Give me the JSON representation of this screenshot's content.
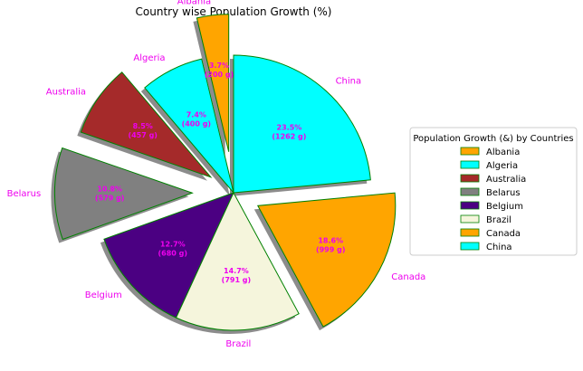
{
  "chart_data": {
    "type": "pie",
    "title": "Country wise Population Growth (%)",
    "categories": [
      "Albania",
      "Algeria",
      "Australia",
      "Belarus",
      "Belgium",
      "Brazil",
      "Canada",
      "China"
    ],
    "values": [
      200,
      400,
      457,
      579,
      680,
      791,
      999,
      1262
    ],
    "percent_labels": [
      "3.7%",
      "7.4%",
      "8.5%",
      "10.8%",
      "12.7%",
      "14.7%",
      "18.6%",
      "23.5%"
    ],
    "value_labels": [
      "(200 g)",
      "(400 g)",
      "(457 g)",
      "(579 g)",
      "(680 g)",
      "(791 g)",
      "(999 g)",
      "(1262 g)"
    ],
    "explode": [
      0.3,
      0.0,
      0.2,
      0.3,
      0.0,
      0.0,
      0.2,
      0.0
    ],
    "colors": [
      "#ffa500",
      "#00ffff",
      "#a52a2a",
      "#808080",
      "#4b0082",
      "#f5f5dc",
      "#ffa500",
      "#00ffff"
    ],
    "legend_colors": [
      "#ffa500",
      "#00ffff",
      "#a52a2a",
      "#808080",
      "#4b0082",
      "#f5f5dc",
      "#ffa500",
      "#00ffff"
    ],
    "edge_color": "#008000",
    "label_color": "#ee00ee",
    "legend_title": "Population Growth (&) by Countries",
    "legend_position": "center-right",
    "start_angle": 90,
    "shadow": true
  }
}
